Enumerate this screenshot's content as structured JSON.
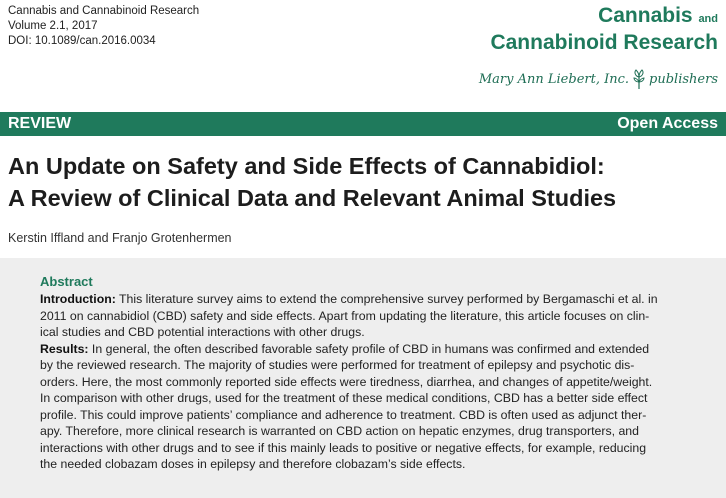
{
  "citation": {
    "line1": "Cannabis and Cannabinoid Research",
    "line2": "Volume 2.1, 2017",
    "line3": "DOI: 10.1089/can.2016.0034"
  },
  "journal": {
    "word1": "Cannabis",
    "and": "and",
    "word2": "Cannabinoid Research"
  },
  "publisher": {
    "name": "Mary Ann Liebert, Inc.",
    "suffix": "publishers"
  },
  "band": {
    "left": "REVIEW",
    "right": "Open Access"
  },
  "article": {
    "title_line1": "An Update on Safety and Side Effects of Cannabidiol:",
    "title_line2": "A Review of Clinical Data and Relevant Animal Studies",
    "authors": "Kerstin Iffland and Franjo Grotenhermen"
  },
  "abstract": {
    "heading": "Abstract",
    "intro_label": "Introduction:",
    "intro_lines": [
      " This literature survey aims to extend the comprehensive survey performed by Bergamaschi et al. in",
      "2011 on cannabidiol (CBD) safety and side effects. Apart from updating the literature, this article focuses on clin-",
      "ical studies and CBD potential interactions with other drugs."
    ],
    "results_label": "Results:",
    "results_lines": [
      " In general, the often described favorable safety profile of CBD in humans was confirmed and extended",
      "by the reviewed research. The majority of studies were performed for treatment of epilepsy and psychotic dis-",
      "orders. Here, the most commonly reported side effects were tiredness, diarrhea, and changes of appetite/weight.",
      "In comparison with other drugs, used for the treatment of these medical conditions, CBD has a better side effect",
      "profile. This could improve patients’ compliance and adherence to treatment. CBD is often used as adjunct ther-",
      "apy. Therefore, more clinical research is warranted on CBD action on hepatic enzymes, drug transporters, and",
      "interactions with other drugs and to see if this mainly leads to positive or negative effects, for example, reducing",
      "the needed clobazam doses in epilepsy and therefore clobazam’s side effects."
    ]
  }
}
